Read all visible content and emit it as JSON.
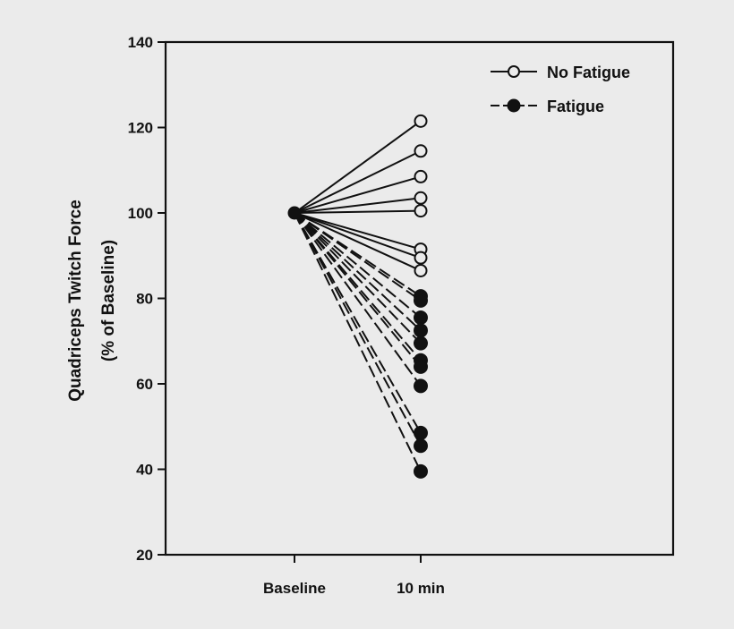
{
  "chart_data": {
    "type": "line",
    "ylabel_line1": "Quadriceps Twitch Force",
    "ylabel_line2": "(% of Baseline)",
    "xlabel": "",
    "categories": [
      "Baseline",
      "10 min"
    ],
    "ylim": [
      20,
      140
    ],
    "yticks": [
      20,
      40,
      60,
      80,
      100,
      120,
      140
    ],
    "ytick_labels": [
      "20",
      "40",
      "60",
      "80",
      "100",
      "120",
      "140"
    ],
    "grid": false,
    "legend_position": "top-right",
    "series": [
      {
        "name": "No Fatigue",
        "marker": "open-circle",
        "line_style": "solid",
        "color": "#111111",
        "baseline": 100,
        "ten_min": [
          121.5,
          114.5,
          108.5,
          103.5,
          100.5,
          91.5,
          89.5,
          86.5
        ]
      },
      {
        "name": "Fatigue",
        "marker": "filled-circle",
        "line_style": "dashed",
        "color": "#111111",
        "baseline": 100,
        "ten_min": [
          80.5,
          79.5,
          75.5,
          72.5,
          69.5,
          65.5,
          64,
          59.5,
          48.5,
          45.5,
          39.5
        ]
      }
    ]
  }
}
